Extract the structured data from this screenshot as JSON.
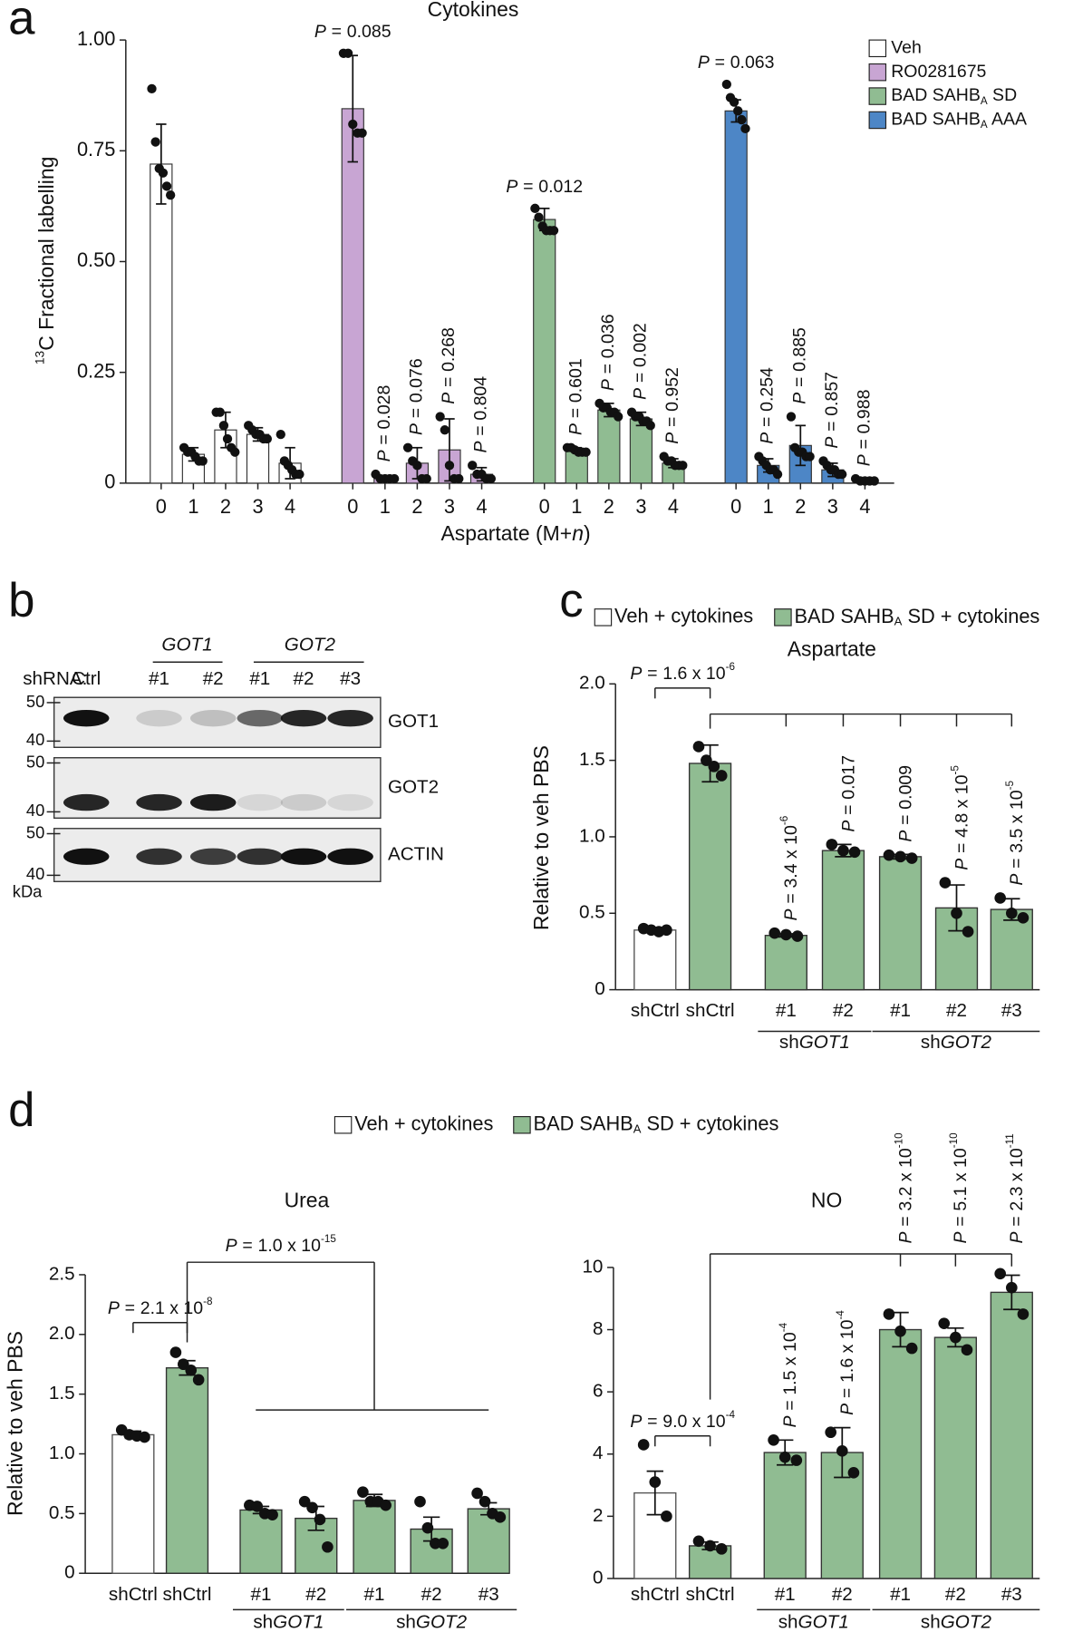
{
  "chart_data": [
    {
      "type": "bar",
      "panel": "a",
      "title": "Cytokines",
      "x_label": [
        "Aspartate (M+",
        "n",
        ")"
      ],
      "y_label": [
        "13",
        "C Fractional labelling"
      ],
      "categories": [
        "0",
        "1",
        "2",
        "3",
        "4"
      ],
      "ylim": [
        0,
        1
      ],
      "yticks": [
        0,
        0.25,
        {
          "value": 0.5,
          "label": "0.50"
        },
        0.75,
        {
          "value": 1,
          "label": "1.00"
        }
      ],
      "legend": "top-right",
      "p_symbol": "P",
      "p_equals": "=",
      "series": [
        {
          "name": "Veh",
          "color": "#ffffff",
          "values": [
            0.72,
            0.065,
            0.12,
            0.11,
            0.045
          ],
          "errors": [
            0.09,
            0.015,
            0.04,
            0.015,
            0.035
          ],
          "points": [
            [
              0.89,
              0.77,
              0.71,
              0.7,
              0.67,
              0.65
            ],
            [
              0.08,
              0.07,
              0.07,
              0.06,
              0.05,
              0.05
            ],
            [
              0.16,
              0.16,
              0.13,
              0.1,
              0.08,
              0.07
            ],
            [
              0.13,
              0.12,
              0.11,
              0.11,
              0.1,
              0.1
            ],
            [
              0.11,
              0.05,
              0.04,
              0.03,
              0.02,
              0.02
            ]
          ]
        },
        {
          "name": "RO0281675",
          "color": "#c8a5d3",
          "values": [
            0.845,
            0.01,
            0.045,
            0.075,
            0.02
          ],
          "errors": [
            0.12,
            0.005,
            0.035,
            0.07,
            0.015
          ],
          "points": [
            [
              0.97,
              0.97,
              0.81,
              0.79,
              0.79
            ],
            [
              0.02,
              0.01,
              0.01,
              0.01,
              0.01
            ],
            [
              0.08,
              0.05,
              0.04,
              0.01,
              0.01
            ],
            [
              0.15,
              0.12,
              0.04,
              0.01,
              0.01
            ],
            [
              0.04,
              0.02,
              0.02,
              0.01,
              0.01
            ]
          ],
          "p_values": [
            [
              "0.085"
            ],
            [
              "0.028"
            ],
            [
              "0.076"
            ],
            [
              "0.268"
            ],
            [
              "0.804"
            ]
          ]
        },
        {
          "name": [
            "BAD SAHB",
            "A",
            " SD"
          ],
          "color": "#90bc92",
          "values": [
            0.595,
            0.075,
            0.165,
            0.145,
            0.045
          ],
          "errors": [
            0.025,
            0.005,
            0.015,
            0.015,
            0.01
          ],
          "points": [
            [
              0.62,
              0.6,
              0.58,
              0.57,
              0.57,
              0.57
            ],
            [
              0.08,
              0.08,
              0.075,
              0.07,
              0.07,
              0.07
            ],
            [
              0.18,
              0.17,
              0.17,
              0.16,
              0.16,
              0.15
            ],
            [
              0.16,
              0.15,
              0.15,
              0.14,
              0.14,
              0.13
            ],
            [
              0.06,
              0.05,
              0.05,
              0.04,
              0.04,
              0.04
            ]
          ],
          "p_values": [
            [
              "0.012"
            ],
            [
              "0.601"
            ],
            [
              "0.036"
            ],
            [
              "0.002"
            ],
            [
              "0.952"
            ]
          ]
        },
        {
          "name": [
            "BAD SAHB",
            "A",
            " AAA"
          ],
          "color": "#4d86c6",
          "values": [
            0.84,
            0.04,
            0.085,
            0.03,
            0.005
          ],
          "errors": [
            0.025,
            0.015,
            0.045,
            0.015,
            0.003
          ],
          "points": [
            [
              0.9,
              0.87,
              0.86,
              0.84,
              0.82,
              0.8
            ],
            [
              0.06,
              0.05,
              0.04,
              0.03,
              0.03,
              0.02
            ],
            [
              0.15,
              0.08,
              0.07,
              0.07,
              0.06,
              0.06
            ],
            [
              0.05,
              0.04,
              0.03,
              0.03,
              0.02,
              0.02
            ],
            [
              0.01,
              0.005,
              0.005,
              0.005,
              0.005
            ]
          ],
          "p_values": [
            [
              "0.063"
            ],
            [
              "0.254"
            ],
            [
              "0.885"
            ],
            [
              "0.857"
            ],
            [
              "0.988"
            ]
          ]
        }
      ]
    },
    {
      "type": "blot",
      "panel": "b",
      "lane_header": "shRNA:",
      "lanes": [
        "Ctrl",
        "#1",
        "#2",
        "#1",
        "#2",
        "#3"
      ],
      "lane_groups": [
        "GOT1",
        "GOT2"
      ],
      "rows": [
        "GOT1",
        "GOT2",
        "ACTIN"
      ],
      "markers": [
        50,
        40
      ],
      "unit": "kDa"
    },
    {
      "type": "bar",
      "panel": "c",
      "title": "Aspartate",
      "y_label": "Relative to veh PBS",
      "categories": [
        "shCtrl",
        "shCtrl",
        "#1",
        "#2",
        "#1",
        "#2",
        "#3"
      ],
      "group_labels": [
        [
          "sh",
          "GOT1"
        ],
        [
          "sh",
          "GOT2"
        ]
      ],
      "ylim": [
        0,
        2
      ],
      "yticks": [
        0,
        0.5,
        {
          "value": 1,
          "label": "1.0"
        },
        1.5,
        {
          "value": 2,
          "label": "2.0"
        }
      ],
      "legend": "top",
      "p_symbol": "P",
      "p_equals": "=",
      "p_values": [
        null,
        [
          "1.6 x 10",
          "-6"
        ],
        [
          "3.4 x 10",
          "-6"
        ],
        [
          "0.017"
        ],
        [
          "0.009"
        ],
        [
          "4.8 x 10",
          "-5"
        ],
        [
          "3.5 x 10",
          "-5"
        ]
      ],
      "series": [
        {
          "name": "Veh + cytokines",
          "color": "#ffffff",
          "values": [
            0.39,
            null,
            null,
            null,
            null,
            null,
            null
          ],
          "errors": [
            0.01,
            null,
            null,
            null,
            null,
            null,
            null
          ],
          "points": [
            [
              0.4,
              0.39,
              0.38,
              0.39
            ],
            null,
            null,
            null,
            null,
            null,
            null
          ]
        },
        {
          "name": [
            "BAD SAHB",
            "A",
            " SD + cytokines"
          ],
          "color": "#90bc92",
          "values": [
            null,
            1.48,
            0.355,
            0.91,
            0.87,
            0.535,
            0.525
          ],
          "errors": [
            null,
            0.12,
            0.01,
            0.04,
            0.015,
            0.15,
            0.07
          ],
          "points": [
            null,
            [
              1.59,
              1.5,
              1.46,
              1.4
            ],
            [
              0.37,
              0.36,
              0.35
            ],
            [
              0.95,
              0.91,
              0.9
            ],
            [
              0.88,
              0.87,
              0.86
            ],
            [
              0.7,
              0.5,
              0.38
            ],
            [
              0.6,
              0.5,
              0.47
            ]
          ]
        }
      ]
    },
    {
      "type": "bar",
      "panel": "d",
      "title": "Urea",
      "y_label": "Relative to veh PBS",
      "categories": [
        "shCtrl",
        "shCtrl",
        "#1",
        "#2",
        "#1",
        "#2",
        "#3"
      ],
      "group_labels": [
        [
          "sh",
          "GOT1"
        ],
        [
          "sh",
          "GOT2"
        ]
      ],
      "ylim": [
        0,
        2.5
      ],
      "yticks": [
        0,
        0.5,
        {
          "value": 1,
          "label": "1.0"
        },
        1.5,
        {
          "value": 2,
          "label": "2.0"
        },
        2.5
      ],
      "legend": "top",
      "p_symbol": "P",
      "p_equals": "=",
      "p_values": [
        null,
        [
          "2.1 x 10",
          "-8"
        ],
        null,
        null,
        null,
        null,
        null
      ],
      "group_p": [
        "1.0 x 10",
        "-15"
      ],
      "series": [
        {
          "name": "Veh + cytokines",
          "color": "#ffffff",
          "values": [
            1.16,
            null,
            null,
            null,
            null,
            null,
            null
          ],
          "errors": [
            0.03,
            null,
            null,
            null,
            null,
            null,
            null
          ],
          "points": [
            [
              1.2,
              1.16,
              1.15,
              1.14
            ],
            null,
            null,
            null,
            null,
            null,
            null
          ]
        },
        {
          "name": [
            "BAD SAHB",
            "A",
            " SD + cytokines"
          ],
          "color": "#90bc92",
          "values": [
            null,
            1.72,
            0.53,
            0.46,
            0.61,
            0.37,
            0.54
          ],
          "errors": [
            null,
            0.06,
            0.03,
            0.1,
            0.05,
            0.1,
            0.05
          ],
          "points": [
            null,
            [
              1.85,
              1.75,
              1.7,
              1.62
            ],
            [
              0.57,
              0.56,
              0.5,
              0.49
            ],
            [
              0.6,
              0.55,
              0.45,
              0.22
            ],
            [
              0.68,
              0.6,
              0.6,
              0.57
            ],
            [
              0.6,
              0.38,
              0.25,
              0.25
            ],
            [
              0.67,
              0.6,
              0.5,
              0.47
            ]
          ]
        }
      ]
    },
    {
      "type": "bar",
      "title": "NO",
      "categories": [
        "shCtrl",
        "shCtrl",
        "#1",
        "#2",
        "#1",
        "#2",
        "#3"
      ],
      "group_labels": [
        [
          "sh",
          "GOT1"
        ],
        [
          "sh",
          "GOT2"
        ]
      ],
      "ylim": [
        0,
        10
      ],
      "yticks": [
        0,
        2,
        4,
        6,
        8,
        10
      ],
      "p_symbol": "P",
      "p_equals": "=",
      "p_values": [
        null,
        [
          "9.0 x 10",
          "-4"
        ],
        [
          "1.5 x 10",
          "-4"
        ],
        [
          "1.6 x 10",
          "-4"
        ],
        [
          "3.2 x 10",
          "-10"
        ],
        [
          "5.1 x 10",
          "-10"
        ],
        [
          "2.3 x 10",
          "-11"
        ]
      ],
      "series": [
        {
          "color": "#ffffff",
          "values": [
            2.75,
            null,
            null,
            null,
            null,
            null,
            null
          ],
          "errors": [
            0.7,
            null,
            null,
            null,
            null,
            null,
            null
          ],
          "points": [
            [
              4.3,
              3.1,
              2.0
            ],
            null,
            null,
            null,
            null,
            null,
            null
          ]
        },
        {
          "color": "#90bc92",
          "values": [
            null,
            1.05,
            4.05,
            4.05,
            8.0,
            7.75,
            9.2
          ],
          "errors": [
            null,
            0.12,
            0.4,
            0.8,
            0.55,
            0.3,
            0.55
          ],
          "points": [
            null,
            [
              1.2,
              1.05,
              0.95
            ],
            [
              4.45,
              3.9,
              3.8
            ],
            [
              4.7,
              4.1,
              3.4
            ],
            [
              8.5,
              7.95,
              7.4
            ],
            [
              8.2,
              7.75,
              7.35
            ],
            [
              9.8,
              9.35,
              8.5
            ]
          ]
        }
      ]
    }
  ]
}
